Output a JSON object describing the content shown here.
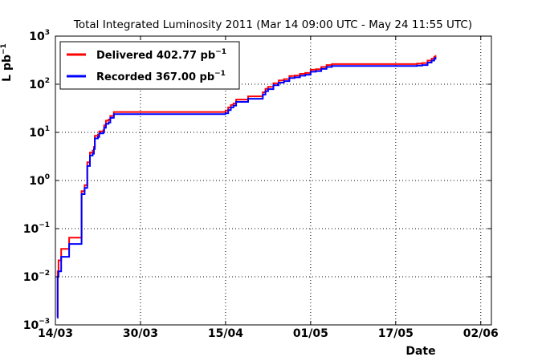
{
  "chart_data": {
    "type": "line",
    "title": "Total Integrated Luminosity 2011 (Mar 14 09:00 UTC - May 24 11:55 UTC)",
    "xlabel": "Date",
    "ylabel": "L pb",
    "ylabel_exponent": "−1",
    "yscale": "log",
    "ylim": [
      0.001,
      1000
    ],
    "xlim": [
      "2011-03-14",
      "2011-06-04"
    ],
    "x_ticks": [
      {
        "date": "2011-03-14",
        "label": "14/03"
      },
      {
        "date": "2011-03-30",
        "label": "30/03"
      },
      {
        "date": "2011-04-15",
        "label": "15/04"
      },
      {
        "date": "2011-05-01",
        "label": "01/05"
      },
      {
        "date": "2011-05-17",
        "label": "17/05"
      },
      {
        "date": "2011-06-02",
        "label": "02/06"
      }
    ],
    "y_ticks": [
      {
        "value": 0.001,
        "base": "10",
        "exp": "-3"
      },
      {
        "value": 0.01,
        "base": "10",
        "exp": "-2"
      },
      {
        "value": 0.1,
        "base": "10",
        "exp": "-1"
      },
      {
        "value": 1,
        "base": "10",
        "exp": "0"
      },
      {
        "value": 10,
        "base": "10",
        "exp": "1"
      },
      {
        "value": 100,
        "base": "10",
        "exp": "2"
      },
      {
        "value": 1000,
        "base": "10",
        "exp": "3"
      }
    ],
    "grid": true,
    "legend_position": "top-left",
    "series": [
      {
        "name": "Delivered 402.77 pb",
        "name_exponent": "−1",
        "color": "#ff0000",
        "points": [
          [
            "2011-03-14 09:00",
            0.0015
          ],
          [
            "2011-03-14 10:00",
            0.013
          ],
          [
            "2011-03-14 14:00",
            0.022
          ],
          [
            "2011-03-15 00:00",
            0.022
          ],
          [
            "2011-03-15 02:00",
            0.038
          ],
          [
            "2011-03-16 12:00",
            0.038
          ],
          [
            "2011-03-16 14:00",
            0.065
          ],
          [
            "2011-03-18 20:00",
            0.065
          ],
          [
            "2011-03-18 22:00",
            0.6
          ],
          [
            "2011-03-19 12:00",
            0.8
          ],
          [
            "2011-03-20 00:00",
            2.4
          ],
          [
            "2011-03-20 12:00",
            3.8
          ],
          [
            "2011-03-21 00:00",
            4.2
          ],
          [
            "2011-03-21 06:00",
            5.0
          ],
          [
            "2011-03-21 10:00",
            8.5
          ],
          [
            "2011-03-22 00:00",
            9.0
          ],
          [
            "2011-03-22 06:00",
            10.5
          ],
          [
            "2011-03-23 00:00",
            11.0
          ],
          [
            "2011-03-23 04:00",
            14.0
          ],
          [
            "2011-03-23 12:00",
            17.5
          ],
          [
            "2011-03-24 00:00",
            18.5
          ],
          [
            "2011-03-24 08:00",
            22.0
          ],
          [
            "2011-03-25 00:00",
            26.5
          ],
          [
            "2011-04-14 00:00",
            26.5
          ],
          [
            "2011-04-15 00:00",
            28.5
          ],
          [
            "2011-04-15 12:00",
            33.0
          ],
          [
            "2011-04-16 00:00",
            37.0
          ],
          [
            "2011-04-16 12:00",
            40.0
          ],
          [
            "2011-04-17 00:00",
            48.0
          ],
          [
            "2011-04-19 00:00",
            48.0
          ],
          [
            "2011-04-19 06:00",
            56.0
          ],
          [
            "2011-04-21 00:00",
            56.0
          ],
          [
            "2011-04-22 00:00",
            68.0
          ],
          [
            "2011-04-22 12:00",
            80.0
          ],
          [
            "2011-04-23 00:00",
            88.0
          ],
          [
            "2011-04-24 00:00",
            105.0
          ],
          [
            "2011-04-25 00:00",
            120.0
          ],
          [
            "2011-04-26 00:00",
            128.0
          ],
          [
            "2011-04-27 00:00",
            148.0
          ],
          [
            "2011-04-28 00:00",
            152.0
          ],
          [
            "2011-04-29 00:00",
            165.0
          ],
          [
            "2011-04-30 00:00",
            172.0
          ],
          [
            "2011-05-01 00:00",
            200.0
          ],
          [
            "2011-05-02 00:00",
            205.0
          ],
          [
            "2011-05-03 00:00",
            228.0
          ],
          [
            "2011-05-04 00:00",
            250.0
          ],
          [
            "2011-05-05 00:00",
            262.0
          ],
          [
            "2011-05-20 00:00",
            262.0
          ],
          [
            "2011-05-21 00:00",
            268.0
          ],
          [
            "2011-05-22 00:00",
            275.0
          ],
          [
            "2011-05-23 00:00",
            310.0
          ],
          [
            "2011-05-23 18:00",
            340.0
          ],
          [
            "2011-05-24 06:00",
            370.0
          ],
          [
            "2011-05-24 11:55",
            402.77
          ]
        ]
      },
      {
        "name": "Recorded 367.00 pb",
        "name_exponent": "−1",
        "color": "#0000ff",
        "points": [
          [
            "2011-03-14 09:00",
            0.0014
          ],
          [
            "2011-03-14 10:00",
            0.01
          ],
          [
            "2011-03-14 14:00",
            0.013
          ],
          [
            "2011-03-15 00:00",
            0.013
          ],
          [
            "2011-03-15 02:00",
            0.026
          ],
          [
            "2011-03-16 12:00",
            0.026
          ],
          [
            "2011-03-16 14:00",
            0.048
          ],
          [
            "2011-03-18 20:00",
            0.048
          ],
          [
            "2011-03-18 22:00",
            0.52
          ],
          [
            "2011-03-19 12:00",
            0.7
          ],
          [
            "2011-03-20 00:00",
            2.0
          ],
          [
            "2011-03-20 12:00",
            3.3
          ],
          [
            "2011-03-21 00:00",
            3.6
          ],
          [
            "2011-03-21 06:00",
            4.5
          ],
          [
            "2011-03-21 10:00",
            7.5
          ],
          [
            "2011-03-22 00:00",
            8.0
          ],
          [
            "2011-03-22 06:00",
            9.5
          ],
          [
            "2011-03-23 00:00",
            10.0
          ],
          [
            "2011-03-23 04:00",
            12.5
          ],
          [
            "2011-03-23 12:00",
            15.0
          ],
          [
            "2011-03-24 00:00",
            16.0
          ],
          [
            "2011-03-24 08:00",
            20.0
          ],
          [
            "2011-03-25 00:00",
            24.0
          ],
          [
            "2011-04-14 00:00",
            24.0
          ],
          [
            "2011-04-15 00:00",
            25.0
          ],
          [
            "2011-04-15 12:00",
            29.0
          ],
          [
            "2011-04-16 00:00",
            33.0
          ],
          [
            "2011-04-16 12:00",
            36.0
          ],
          [
            "2011-04-17 00:00",
            43.0
          ],
          [
            "2011-04-19 00:00",
            43.0
          ],
          [
            "2011-04-19 06:00",
            50.0
          ],
          [
            "2011-04-21 00:00",
            50.0
          ],
          [
            "2011-04-22 00:00",
            61.0
          ],
          [
            "2011-04-22 12:00",
            72.0
          ],
          [
            "2011-04-23 00:00",
            79.0
          ],
          [
            "2011-04-24 00:00",
            95.0
          ],
          [
            "2011-04-25 00:00",
            108.0
          ],
          [
            "2011-04-26 00:00",
            116.0
          ],
          [
            "2011-04-27 00:00",
            135.0
          ],
          [
            "2011-04-28 00:00",
            139.0
          ],
          [
            "2011-04-29 00:00",
            150.0
          ],
          [
            "2011-04-30 00:00",
            158.0
          ],
          [
            "2011-05-01 00:00",
            182.0
          ],
          [
            "2011-05-02 00:00",
            188.0
          ],
          [
            "2011-05-03 00:00",
            208.0
          ],
          [
            "2011-05-04 00:00",
            228.0
          ],
          [
            "2011-05-05 00:00",
            240.0
          ],
          [
            "2011-05-20 00:00",
            240.0
          ],
          [
            "2011-05-21 00:00",
            245.0
          ],
          [
            "2011-05-22 00:00",
            250.0
          ],
          [
            "2011-05-23 00:00",
            282.0
          ],
          [
            "2011-05-23 18:00",
            310.0
          ],
          [
            "2011-05-24 06:00",
            338.0
          ],
          [
            "2011-05-24 11:55",
            367.0
          ]
        ]
      }
    ]
  }
}
